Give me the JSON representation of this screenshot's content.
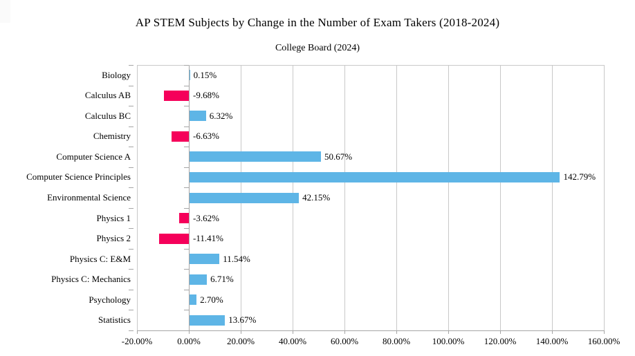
{
  "chart_data": {
    "type": "bar",
    "orientation": "horizontal",
    "title": "AP STEM Subjects by Change in the Number of Exam Takers (2018-2024)",
    "subtitle": "College Board (2024)",
    "categories": [
      "Biology",
      "Calculus AB",
      "Calculus BC",
      "Chemistry",
      "Computer Science A",
      "Computer Science Principles",
      "Environmental Science",
      "Physics 1",
      "Physics 2",
      "Physics C: E&M",
      "Physics C: Mechanics",
      "Psychology",
      "Statistics"
    ],
    "values": [
      0.15,
      -9.68,
      6.32,
      -6.63,
      50.67,
      142.79,
      42.15,
      -3.62,
      -11.41,
      11.54,
      6.71,
      2.7,
      13.67
    ],
    "value_labels": [
      "0.15%",
      "-9.68%",
      "6.32%",
      "-6.63%",
      "50.67%",
      "142.79%",
      "42.15%",
      "-3.62%",
      "-11.41%",
      "11.54%",
      "6.71%",
      "2.70%",
      "13.67%"
    ],
    "x_axis": {
      "min": -20,
      "max": 160,
      "tick_step": 20,
      "tick_labels": [
        "-20.00%",
        "0.00%",
        "20.00%",
        "40.00%",
        "60.00%",
        "80.00%",
        "100.00%",
        "120.00%",
        "140.00%",
        "160.00%"
      ]
    },
    "grid": true,
    "legend": false,
    "colors": {
      "positive_bar": "#5EB5E6",
      "negative_bar": "#F5005A",
      "gridline": "#C8C8C8",
      "axis_line": "#A5A5A5",
      "text": "#000000"
    }
  }
}
